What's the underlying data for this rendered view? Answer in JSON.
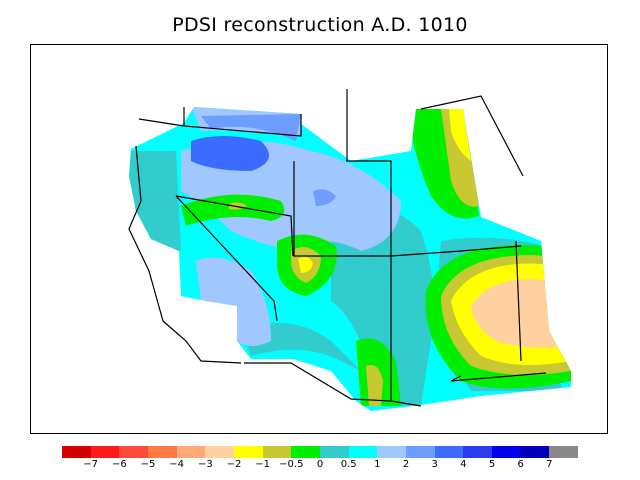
{
  "title": "PDSI reconstruction A.D. 1010",
  "legend": {
    "colors": [
      "#d40000",
      "#ff1a1a",
      "#ff4a3a",
      "#ff7a44",
      "#ffaa77",
      "#ffd0a0",
      "#ffff00",
      "#c8c832",
      "#00ee00",
      "#33cccc",
      "#00ffff",
      "#a0c8ff",
      "#6e9cff",
      "#3c6cff",
      "#2a3cee",
      "#0000ee",
      "#0000bb",
      "#888888"
    ],
    "labels": [
      "−7",
      "−6",
      "−5",
      "−4",
      "−3",
      "−2",
      "−1",
      "−0.5",
      "0",
      "0.5",
      "1",
      "2",
      "3",
      "4",
      "5",
      "6",
      "7"
    ]
  },
  "map_colors": {
    "base": "#00ffff",
    "teal": "#33cccc",
    "green": "#00ee00",
    "olive": "#c8c832",
    "yellow": "#ffff00",
    "peach": "#ffd0a0",
    "lightblue": "#a0c8ff",
    "blue": "#6e9cff",
    "darkblue": "#3c6cff"
  }
}
